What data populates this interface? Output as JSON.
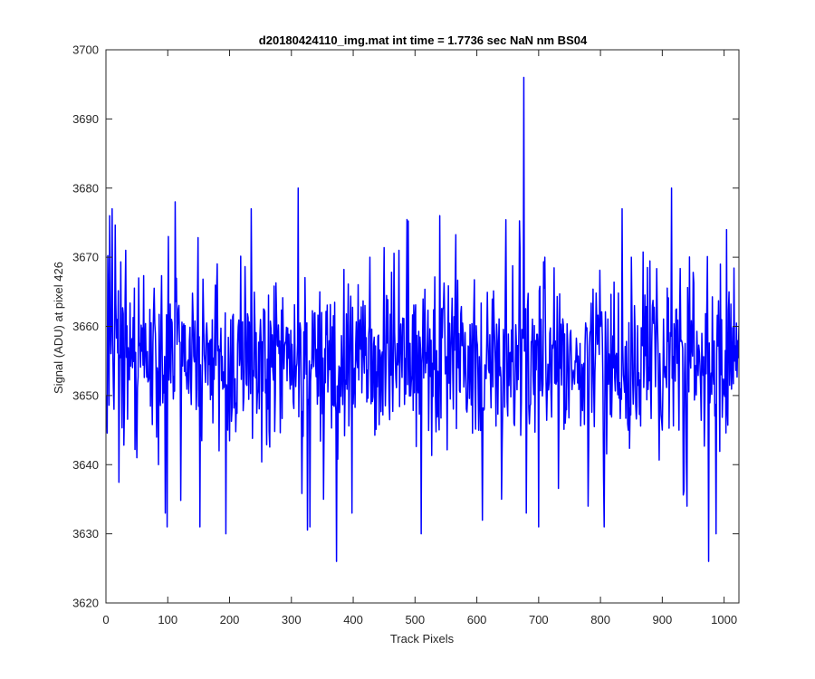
{
  "chart_data": {
    "type": "line",
    "title": "d20180424110_img.mat int time = 1.7736 sec  NaN nm BS04",
    "xlabel": "Track Pixels",
    "ylabel": "Signal (ADU) at pixel 426",
    "xlim": [
      0,
      1024
    ],
    "ylim": [
      3620,
      3700
    ],
    "xticks": [
      0,
      100,
      200,
      300,
      400,
      500,
      600,
      700,
      800,
      900,
      1000
    ],
    "yticks": [
      3620,
      3630,
      3640,
      3650,
      3660,
      3670,
      3680,
      3690,
      3700
    ],
    "grid": false,
    "legend": "none",
    "line_color": "#0000ff",
    "series": [
      {
        "x_start": 1,
        "x_step": 1,
        "n_points": 1024,
        "mean": 3655,
        "std": 6.5,
        "seed": 20180424,
        "values_sampled": [
          [
            1,
            3650
          ],
          [
            6,
            3676
          ],
          [
            10,
            3677
          ],
          [
            13,
            3648
          ],
          [
            18,
            3661
          ],
          [
            32,
            3671
          ],
          [
            50,
            3641
          ],
          [
            53,
            3667
          ],
          [
            85,
            3640
          ],
          [
            96,
            3633
          ],
          [
            99,
            3631
          ],
          [
            101,
            3673
          ],
          [
            112,
            3678
          ],
          [
            152,
            3631
          ],
          [
            194,
            3630
          ],
          [
            197,
            3645
          ],
          [
            235,
            3677
          ],
          [
            311,
            3680
          ],
          [
            330,
            3631
          ],
          [
            352,
            3635
          ],
          [
            373,
            3626
          ],
          [
            398,
            3633
          ],
          [
            427,
            3670
          ],
          [
            474,
            3671
          ],
          [
            510,
            3630
          ],
          [
            540,
            3676
          ],
          [
            570,
            3654
          ],
          [
            640,
            3635
          ],
          [
            676,
            3696
          ],
          [
            680,
            3633
          ],
          [
            700,
            3631
          ],
          [
            710,
            3670
          ],
          [
            780,
            3634
          ],
          [
            806,
            3631
          ],
          [
            835,
            3677
          ],
          [
            850,
            3670
          ],
          [
            900,
            3645
          ],
          [
            915,
            3680
          ],
          [
            940,
            3634
          ],
          [
            975,
            3626
          ],
          [
            1004,
            3674
          ],
          [
            1024,
            3660
          ]
        ]
      }
    ]
  }
}
